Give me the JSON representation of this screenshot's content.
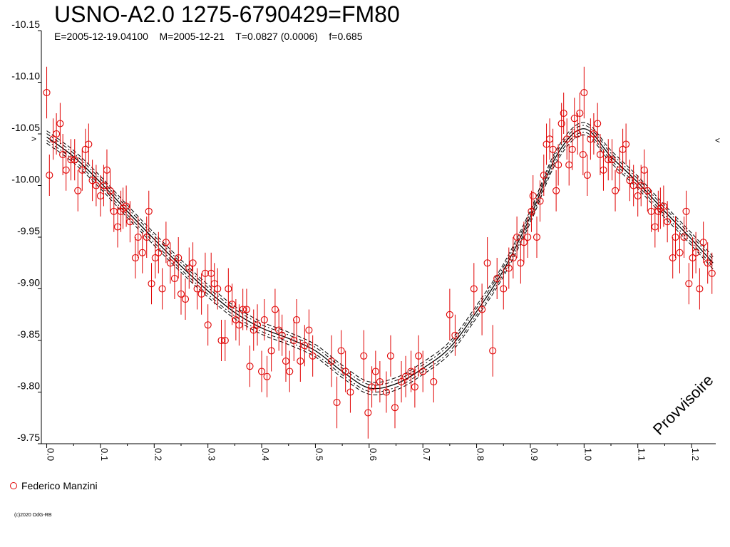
{
  "header": {
    "title": "USNO-A2.0 1275-6790429=FM80",
    "subtitle": "E=2005-12-19.04100    M=2005-12-21    T=0.0827 (0.0006)    f=0.685"
  },
  "legend": {
    "observer": "Federico Manzini",
    "marker_color": "#e00000"
  },
  "copyright": "(c)2020 OdG-RB",
  "watermark": "Provvisoire",
  "side_markers": {
    "left": ">",
    "right": "<"
  },
  "chart_data": {
    "type": "scatter",
    "title": "USNO-A2.0 1275-6790429=FM80",
    "xlabel": "",
    "ylabel": "",
    "xlim": [
      -0.01,
      1.245
    ],
    "ylim": [
      -10.15,
      -9.75
    ],
    "y_reversed": true,
    "y_ticks": [
      -10.15,
      -10.1,
      -10.05,
      -10.0,
      -9.95,
      -9.9,
      -9.85,
      -9.8,
      -9.75
    ],
    "y_tick_labels": [
      "-10.15",
      "-10.10",
      "-10.05",
      "-10.00",
      "-9.95",
      "-9.90",
      "-9.85",
      "-9.80",
      "-9.75"
    ],
    "x_ticks": [
      0.0,
      0.1,
      0.2,
      0.3,
      0.4,
      0.5,
      0.6,
      0.7,
      0.8,
      0.9,
      1.0,
      1.1,
      1.2
    ],
    "x_tick_labels": [
      "0.0",
      "0.1",
      "0.2",
      "0.3",
      "0.4",
      "0.5",
      "0.6",
      "0.7",
      "0.8",
      "0.9",
      "1.0",
      "1.1",
      "1.2"
    ],
    "grid": false,
    "legend_position": "bottom-left",
    "colors": {
      "points": "#e00000",
      "fit": "#000000"
    },
    "series": [
      {
        "name": "Federico Manzini",
        "points": [
          [
            0.0,
            -10.09,
            0.025
          ],
          [
            0.005,
            -10.01,
            0.02
          ],
          [
            0.012,
            -10.045,
            0.02
          ],
          [
            0.018,
            -10.05,
            0.02
          ],
          [
            0.025,
            -10.06,
            0.02
          ],
          [
            0.03,
            -10.03,
            0.02
          ],
          [
            0.036,
            -10.015,
            0.02
          ],
          [
            0.045,
            -10.025,
            0.02
          ],
          [
            0.052,
            -10.025,
            0.02
          ],
          [
            0.058,
            -9.995,
            0.02
          ],
          [
            0.066,
            -10.015,
            0.02
          ],
          [
            0.072,
            -10.035,
            0.02
          ],
          [
            0.078,
            -10.04,
            0.02
          ],
          [
            0.085,
            -10.005,
            0.02
          ],
          [
            0.092,
            -10.0,
            0.02
          ],
          [
            0.1,
            -9.99,
            0.02
          ],
          [
            0.106,
            -10.0,
            0.02
          ],
          [
            0.112,
            -10.015,
            0.02
          ],
          [
            0.118,
            -9.995,
            0.02
          ],
          [
            0.125,
            -9.975,
            0.02
          ],
          [
            0.132,
            -9.96,
            0.02
          ],
          [
            0.138,
            -9.975,
            0.02
          ],
          [
            0.142,
            -9.978,
            0.02
          ],
          [
            0.148,
            -9.98,
            0.02
          ],
          [
            0.155,
            -9.965,
            0.02
          ],
          [
            0.165,
            -9.93,
            0.02
          ],
          [
            0.17,
            -9.95,
            0.02
          ],
          [
            0.178,
            -9.935,
            0.02
          ],
          [
            0.186,
            -9.95,
            0.02
          ],
          [
            0.19,
            -9.975,
            0.02
          ],
          [
            0.195,
            -9.905,
            0.02
          ],
          [
            0.202,
            -9.93,
            0.02
          ],
          [
            0.208,
            -9.935,
            0.02
          ],
          [
            0.215,
            -9.9,
            0.02
          ],
          [
            0.222,
            -9.945,
            0.02
          ],
          [
            0.23,
            -9.925,
            0.02
          ],
          [
            0.238,
            -9.91,
            0.02
          ],
          [
            0.245,
            -9.93,
            0.02
          ],
          [
            0.25,
            -9.895,
            0.02
          ],
          [
            0.258,
            -9.89,
            0.02
          ],
          [
            0.265,
            -9.92,
            0.02
          ],
          [
            0.272,
            -9.925,
            0.02
          ],
          [
            0.28,
            -9.9,
            0.02
          ],
          [
            0.288,
            -9.895,
            0.02
          ],
          [
            0.295,
            -9.915,
            0.02
          ],
          [
            0.3,
            -9.865,
            0.02
          ],
          [
            0.306,
            -9.915,
            0.02
          ],
          [
            0.312,
            -9.905,
            0.02
          ],
          [
            0.318,
            -9.9,
            0.02
          ],
          [
            0.325,
            -9.85,
            0.02
          ],
          [
            0.332,
            -9.85,
            0.02
          ],
          [
            0.338,
            -9.9,
            0.02
          ],
          [
            0.345,
            -9.885,
            0.02
          ],
          [
            0.352,
            -9.87,
            0.02
          ],
          [
            0.358,
            -9.865,
            0.02
          ],
          [
            0.365,
            -9.88,
            0.02
          ],
          [
            0.372,
            -9.88,
            0.02
          ],
          [
            0.378,
            -9.825,
            0.02
          ],
          [
            0.385,
            -9.86,
            0.02
          ],
          [
            0.392,
            -9.865,
            0.02
          ],
          [
            0.4,
            -9.82,
            0.02
          ],
          [
            0.405,
            -9.87,
            0.02
          ],
          [
            0.41,
            -9.815,
            0.02
          ],
          [
            0.418,
            -9.84,
            0.02
          ],
          [
            0.425,
            -9.88,
            0.02
          ],
          [
            0.432,
            -9.86,
            0.02
          ],
          [
            0.438,
            -9.855,
            0.02
          ],
          [
            0.445,
            -9.83,
            0.02
          ],
          [
            0.452,
            -9.82,
            0.02
          ],
          [
            0.46,
            -9.85,
            0.02
          ],
          [
            0.465,
            -9.87,
            0.02
          ],
          [
            0.472,
            -9.83,
            0.02
          ],
          [
            0.48,
            -9.845,
            0.02
          ],
          [
            0.488,
            -9.86,
            0.02
          ],
          [
            0.495,
            -9.835,
            0.02
          ],
          [
            0.53,
            -9.83,
            0.025
          ],
          [
            0.54,
            -9.79,
            0.025
          ],
          [
            0.548,
            -9.84,
            0.02
          ],
          [
            0.556,
            -9.82,
            0.02
          ],
          [
            0.565,
            -9.8,
            0.02
          ],
          [
            0.59,
            -9.835,
            0.025
          ],
          [
            0.598,
            -9.78,
            0.025
          ],
          [
            0.605,
            -9.805,
            0.02
          ],
          [
            0.612,
            -9.82,
            0.02
          ],
          [
            0.62,
            -9.81,
            0.02
          ],
          [
            0.632,
            -9.8,
            0.02
          ],
          [
            0.64,
            -9.835,
            0.02
          ],
          [
            0.648,
            -9.785,
            0.02
          ],
          [
            0.66,
            -9.81,
            0.02
          ],
          [
            0.668,
            -9.815,
            0.02
          ],
          [
            0.678,
            -9.82,
            0.02
          ],
          [
            0.685,
            -9.805,
            0.02
          ],
          [
            0.692,
            -9.835,
            0.02
          ],
          [
            0.7,
            -9.82,
            0.02
          ],
          [
            0.72,
            -9.81,
            0.02
          ],
          [
            0.75,
            -9.875,
            0.025
          ],
          [
            0.76,
            -9.855,
            0.02
          ],
          [
            0.795,
            -9.9,
            0.025
          ],
          [
            0.81,
            -9.88,
            0.025
          ],
          [
            0.82,
            -9.925,
            0.025
          ],
          [
            0.83,
            -9.84,
            0.025
          ],
          [
            0.838,
            -9.91,
            0.02
          ],
          [
            0.85,
            -9.9,
            0.02
          ],
          [
            0.86,
            -9.92,
            0.02
          ],
          [
            0.868,
            -9.93,
            0.02
          ],
          [
            0.875,
            -9.95,
            0.02
          ],
          [
            0.882,
            -9.925,
            0.02
          ],
          [
            0.888,
            -9.945,
            0.02
          ],
          [
            0.895,
            -9.95,
            0.02
          ],
          [
            0.902,
            -9.975,
            0.02
          ],
          [
            0.905,
            -9.99,
            0.02
          ],
          [
            0.912,
            -9.95,
            0.02
          ],
          [
            0.918,
            -9.985,
            0.02
          ],
          [
            0.925,
            -10.01,
            0.02
          ],
          [
            0.93,
            -10.04,
            0.02
          ],
          [
            0.936,
            -10.045,
            0.02
          ],
          [
            0.942,
            -10.035,
            0.02
          ],
          [
            0.948,
            -9.995,
            0.02
          ],
          [
            0.952,
            -10.02,
            0.02
          ],
          [
            0.958,
            -10.06,
            0.02
          ],
          [
            0.962,
            -10.07,
            0.02
          ],
          [
            0.968,
            -10.045,
            0.02
          ],
          [
            0.972,
            -10.02,
            0.02
          ],
          [
            0.978,
            -10.035,
            0.02
          ],
          [
            0.982,
            -10.065,
            0.02
          ],
          [
            0.988,
            -10.05,
            0.02
          ],
          [
            0.992,
            -10.07,
            0.02
          ],
          [
            0.998,
            -10.03,
            0.02
          ],
          [
            1.0,
            -10.09,
            0.025
          ],
          [
            1.006,
            -10.01,
            0.02
          ],
          [
            1.012,
            -10.045,
            0.02
          ],
          [
            1.018,
            -10.05,
            0.02
          ],
          [
            1.025,
            -10.06,
            0.02
          ],
          [
            1.03,
            -10.03,
            0.02
          ],
          [
            1.036,
            -10.015,
            0.02
          ],
          [
            1.045,
            -10.025,
            0.02
          ],
          [
            1.052,
            -10.025,
            0.02
          ],
          [
            1.058,
            -9.995,
            0.02
          ],
          [
            1.066,
            -10.015,
            0.02
          ],
          [
            1.072,
            -10.035,
            0.02
          ],
          [
            1.078,
            -10.04,
            0.02
          ],
          [
            1.085,
            -10.005,
            0.02
          ],
          [
            1.092,
            -10.0,
            0.02
          ],
          [
            1.1,
            -9.99,
            0.02
          ],
          [
            1.106,
            -10.0,
            0.02
          ],
          [
            1.112,
            -10.015,
            0.02
          ],
          [
            1.118,
            -9.995,
            0.02
          ],
          [
            1.125,
            -9.975,
            0.02
          ],
          [
            1.132,
            -9.96,
            0.02
          ],
          [
            1.138,
            -9.975,
            0.02
          ],
          [
            1.142,
            -9.978,
            0.02
          ],
          [
            1.148,
            -9.98,
            0.02
          ],
          [
            1.155,
            -9.965,
            0.02
          ],
          [
            1.165,
            -9.93,
            0.02
          ],
          [
            1.17,
            -9.95,
            0.02
          ],
          [
            1.178,
            -9.935,
            0.02
          ],
          [
            1.186,
            -9.95,
            0.02
          ],
          [
            1.19,
            -9.975,
            0.02
          ],
          [
            1.195,
            -9.905,
            0.02
          ],
          [
            1.202,
            -9.93,
            0.02
          ],
          [
            1.208,
            -9.935,
            0.02
          ],
          [
            1.215,
            -9.9,
            0.02
          ],
          [
            1.222,
            -9.945,
            0.02
          ],
          [
            1.23,
            -9.925,
            0.02
          ],
          [
            1.238,
            -9.915,
            0.02
          ]
        ]
      }
    ],
    "fit_curve": {
      "x": [
        0.0,
        0.05,
        0.1,
        0.15,
        0.2,
        0.25,
        0.3,
        0.35,
        0.4,
        0.45,
        0.5,
        0.55,
        0.6,
        0.65,
        0.7,
        0.75,
        0.8,
        0.85,
        0.9,
        0.95,
        1.0,
        1.05,
        1.1,
        1.15,
        1.2,
        1.24
      ],
      "y": [
        -10.047,
        -10.028,
        -10.003,
        -9.975,
        -9.948,
        -9.922,
        -9.898,
        -9.877,
        -9.862,
        -9.852,
        -9.84,
        -9.82,
        -9.804,
        -9.808,
        -9.823,
        -9.843,
        -9.878,
        -9.918,
        -9.97,
        -10.03,
        -10.055,
        -10.028,
        -10.003,
        -9.975,
        -9.948,
        -9.925
      ],
      "band_offset": 0.006
    }
  }
}
